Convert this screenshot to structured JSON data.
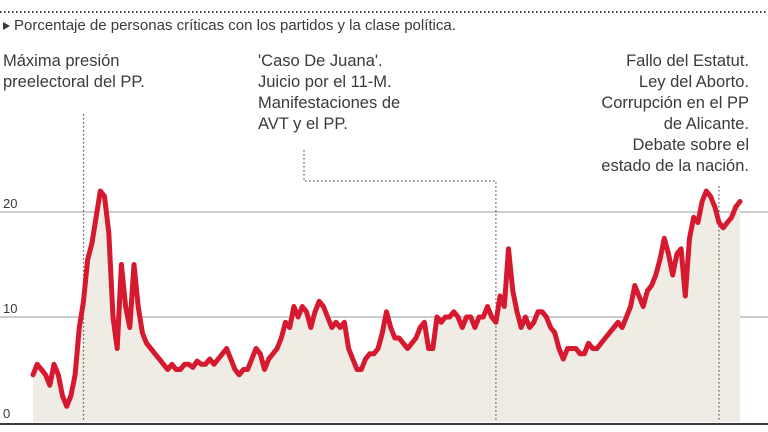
{
  "chart_data": {
    "type": "area",
    "subtitle": "Porcentaje de personas críticas con los partidos y la clase política.",
    "xlabel": "",
    "ylabel": "",
    "ylim": [
      0,
      22
    ],
    "yticks": [
      0,
      10,
      20
    ],
    "grid": true,
    "line_color": "#d7192f",
    "fill_color": "#eeece4",
    "annotations": [
      {
        "lines": [
          "Máxima presión",
          "preelectoral del PP."
        ],
        "at_index": 12,
        "align": "left"
      },
      {
        "lines": [
          "'Caso De Juana'.",
          "Juicio por el 11-M.",
          "Manifestaciones de",
          "AVT y el PP."
        ],
        "at_index": 110,
        "align": "left"
      },
      {
        "lines": [
          "Fallo del Estatut.",
          "Ley del Aborto.",
          "Corrupción en el PP",
          "de Alicante.",
          "Debate sobre el",
          "estado de la nación."
        ],
        "at_index": 163,
        "align": "right"
      }
    ],
    "series": [
      {
        "values": [
          4.5,
          5.5,
          5.0,
          4.5,
          3.5,
          5.5,
          4.5,
          2.5,
          1.5,
          2.5,
          4.5,
          9.0,
          11.5,
          15.5,
          17.0,
          19.5,
          22.0,
          21.5,
          18.0,
          10.0,
          7.0,
          15.0,
          11.0,
          9.0,
          15.0,
          11.0,
          8.5,
          7.5,
          7.0,
          6.5,
          6.0,
          5.5,
          5.0,
          5.5,
          5.0,
          5.0,
          5.5,
          5.5,
          5.2,
          5.8,
          5.5,
          5.5,
          6.0,
          5.5,
          6.0,
          6.5,
          7.0,
          6.0,
          5.0,
          4.5,
          5.0,
          5.0,
          6.0,
          7.0,
          6.5,
          5.0,
          6.0,
          6.5,
          7.0,
          8.0,
          9.5,
          9.0,
          11.0,
          10.0,
          11.0,
          10.5,
          9.0,
          10.5,
          11.5,
          11.0,
          10.0,
          9.0,
          9.5,
          9.0,
          9.5,
          7.0,
          6.0,
          5.0,
          5.0,
          6.0,
          6.5,
          6.5,
          7.0,
          8.5,
          10.5,
          9.0,
          8.0,
          8.0,
          7.5,
          7.0,
          7.5,
          8.0,
          9.0,
          9.5,
          7.0,
          7.0,
          10.0,
          9.5,
          10.0,
          10.0,
          10.5,
          10.0,
          9.0,
          10.0,
          10.0,
          9.0,
          10.0,
          10.0,
          11.0,
          10.0,
          9.5,
          12.0,
          11.0,
          16.5,
          12.5,
          10.5,
          9.0,
          10.0,
          9.0,
          9.5,
          10.5,
          10.5,
          10.0,
          9.0,
          8.5,
          7.0,
          6.0,
          7.0,
          7.0,
          7.0,
          6.5,
          6.5,
          7.5,
          7.0,
          7.0,
          7.5,
          8.0,
          8.5,
          9.0,
          9.5,
          9.0,
          10.0,
          11.0,
          13.0,
          12.0,
          11.0,
          12.5,
          13.0,
          14.0,
          15.5,
          17.5,
          16.0,
          14.0,
          16.0,
          16.5,
          12.0,
          17.5,
          19.5,
          19.0,
          21.0,
          22.0,
          21.5,
          20.5,
          19.0,
          18.5,
          19.0,
          19.5,
          20.5,
          21.0
        ]
      }
    ]
  }
}
